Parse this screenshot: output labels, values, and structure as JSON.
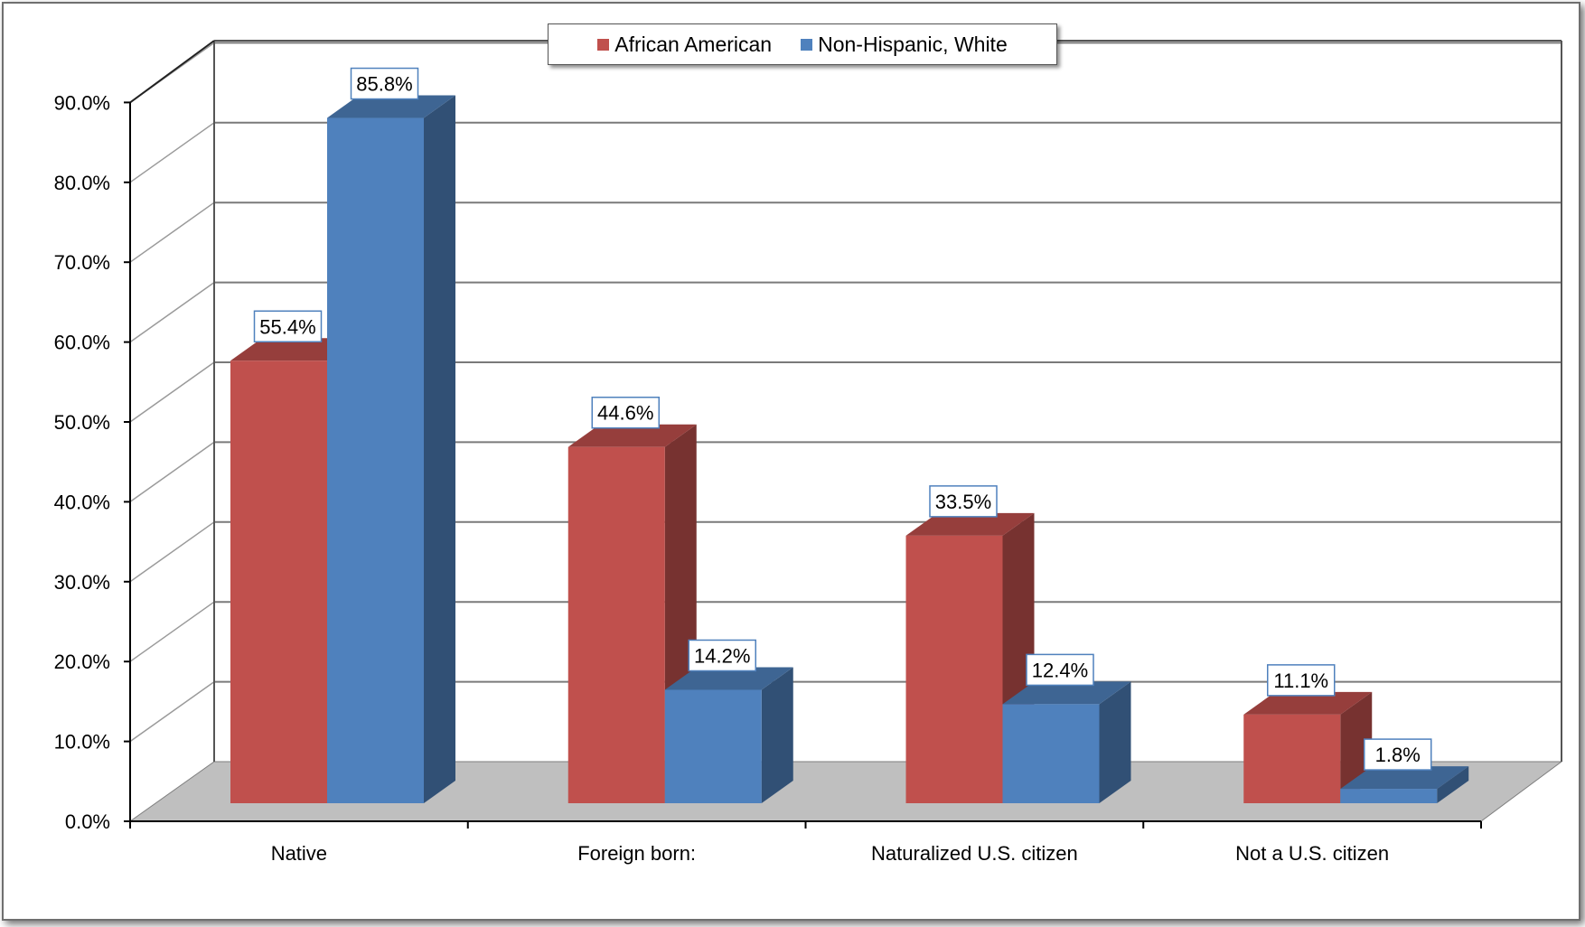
{
  "chart_data": {
    "type": "bar",
    "categories": [
      "Native",
      "Foreign born:",
      "Naturalized U.S. citizen",
      "Not a U.S. citizen"
    ],
    "series": [
      {
        "name": "African American",
        "color": "#c0504d",
        "values": [
          55.4,
          44.6,
          33.5,
          11.1
        ],
        "labels": [
          "55.4%",
          "44.6%",
          "33.5%",
          "11.1%"
        ]
      },
      {
        "name": "Non-Hispanic, White",
        "color": "#4f81bd",
        "values": [
          85.8,
          14.2,
          12.4,
          1.8
        ],
        "labels": [
          "85.8%",
          "14.2%",
          "12.4%",
          "1.8%"
        ]
      }
    ],
    "y_ticks": [
      "0.0%",
      "10.0%",
      "20.0%",
      "30.0%",
      "40.0%",
      "50.0%",
      "60.0%",
      "70.0%",
      "80.0%",
      "90.0%"
    ],
    "ylim": [
      0,
      90
    ],
    "grid": true,
    "legend_position": "top-center",
    "style": "3d-clustered-column"
  }
}
